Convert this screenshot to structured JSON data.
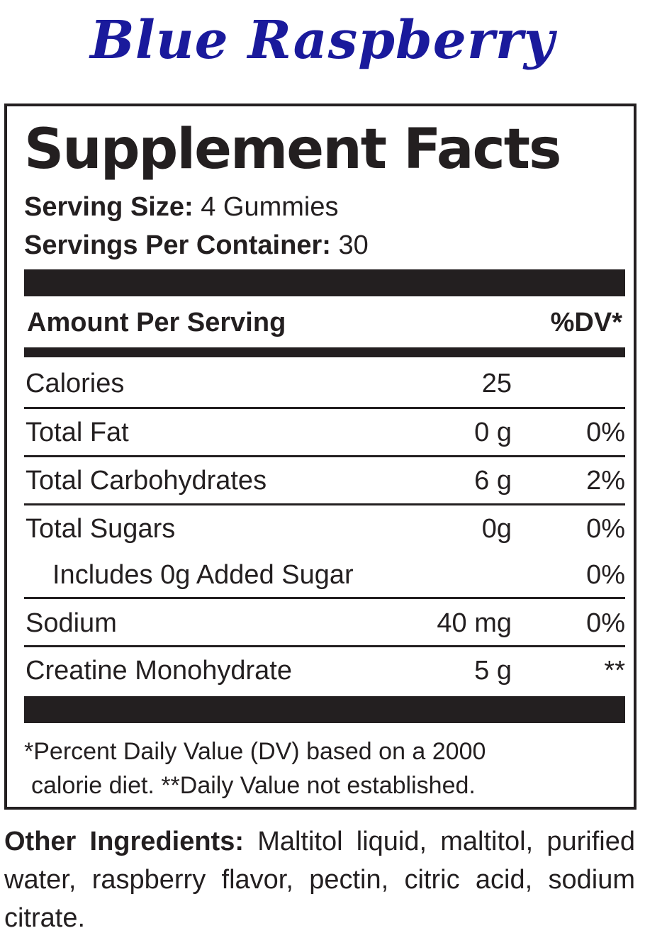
{
  "flavor": "Blue Raspberry",
  "panel": {
    "heading": "Supplement Facts",
    "serving_size_label": "Serving Size:",
    "serving_size_value": "4 Gummies",
    "servings_label": "Servings Per Container:",
    "servings_value": "30",
    "amount_header": "Amount Per Serving",
    "dv_header": "%DV*",
    "rows": [
      {
        "name": "Calories",
        "amount": "25",
        "dv": ""
      },
      {
        "name": "Total Fat",
        "amount": "0 g",
        "dv": "0%"
      },
      {
        "name": "Total Carbohydrates",
        "amount": "6 g",
        "dv": "2%"
      },
      {
        "name": "Total Sugars",
        "amount": "0g",
        "dv": "0%"
      },
      {
        "name": "Includes 0g Added Sugar",
        "amount": "",
        "dv": "0%"
      },
      {
        "name": "Sodium",
        "amount": "40 mg",
        "dv": "0%"
      },
      {
        "name": "Creatine Monohydrate",
        "amount": "5 g",
        "dv": "**"
      }
    ],
    "footnote_line1": "*Percent Daily Value (DV) based on a 2000",
    "footnote_line2": "calorie diet. **Daily Value not established."
  },
  "ingredients": {
    "label": "Other Ingredients:",
    "text": "Maltitol liquid, maltitol, purified water, raspberry flavor, pectin, citric acid, sodium citrate."
  },
  "colors": {
    "title": "#1a1a9c",
    "ink": "#231f20"
  }
}
